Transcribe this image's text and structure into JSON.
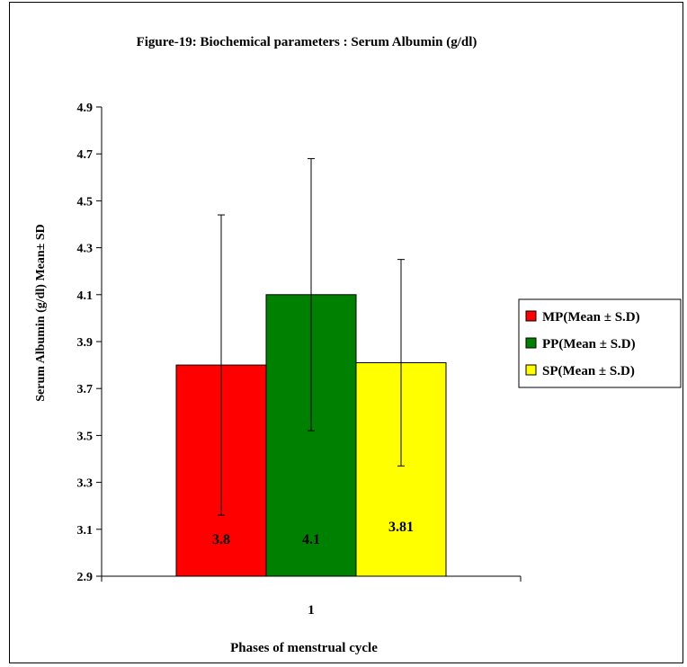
{
  "chart_data": {
    "type": "bar",
    "title": "Figure-19: Biochemical parameters : Serum  Albumin (g/dl)",
    "xlabel": "Phases of menstrual cycle",
    "ylabel": "Serum  Albumin (g/dl) Mean± SD",
    "categories": [
      "1"
    ],
    "ylim": [
      2.9,
      4.9
    ],
    "yticks": [
      "2.9",
      "3.1",
      "3.3",
      "3.5",
      "3.7",
      "3.9",
      "4.1",
      "4.3",
      "4.5",
      "4.7",
      "4.9"
    ],
    "grid": false,
    "legend_position": "right",
    "series": [
      {
        "name": "MP(Mean ± S.D)",
        "values": [
          3.8
        ],
        "error": [
          0.64
        ],
        "label": "3.8",
        "color": "#ff0000"
      },
      {
        "name": "PP(Mean ± S.D)",
        "values": [
          4.1
        ],
        "error": [
          0.58
        ],
        "label": "4.1",
        "color": "#008000"
      },
      {
        "name": "SP(Mean ± S.D)",
        "values": [
          3.81
        ],
        "error": [
          0.44
        ],
        "label": "3.81",
        "color": "#ffff00"
      }
    ]
  }
}
